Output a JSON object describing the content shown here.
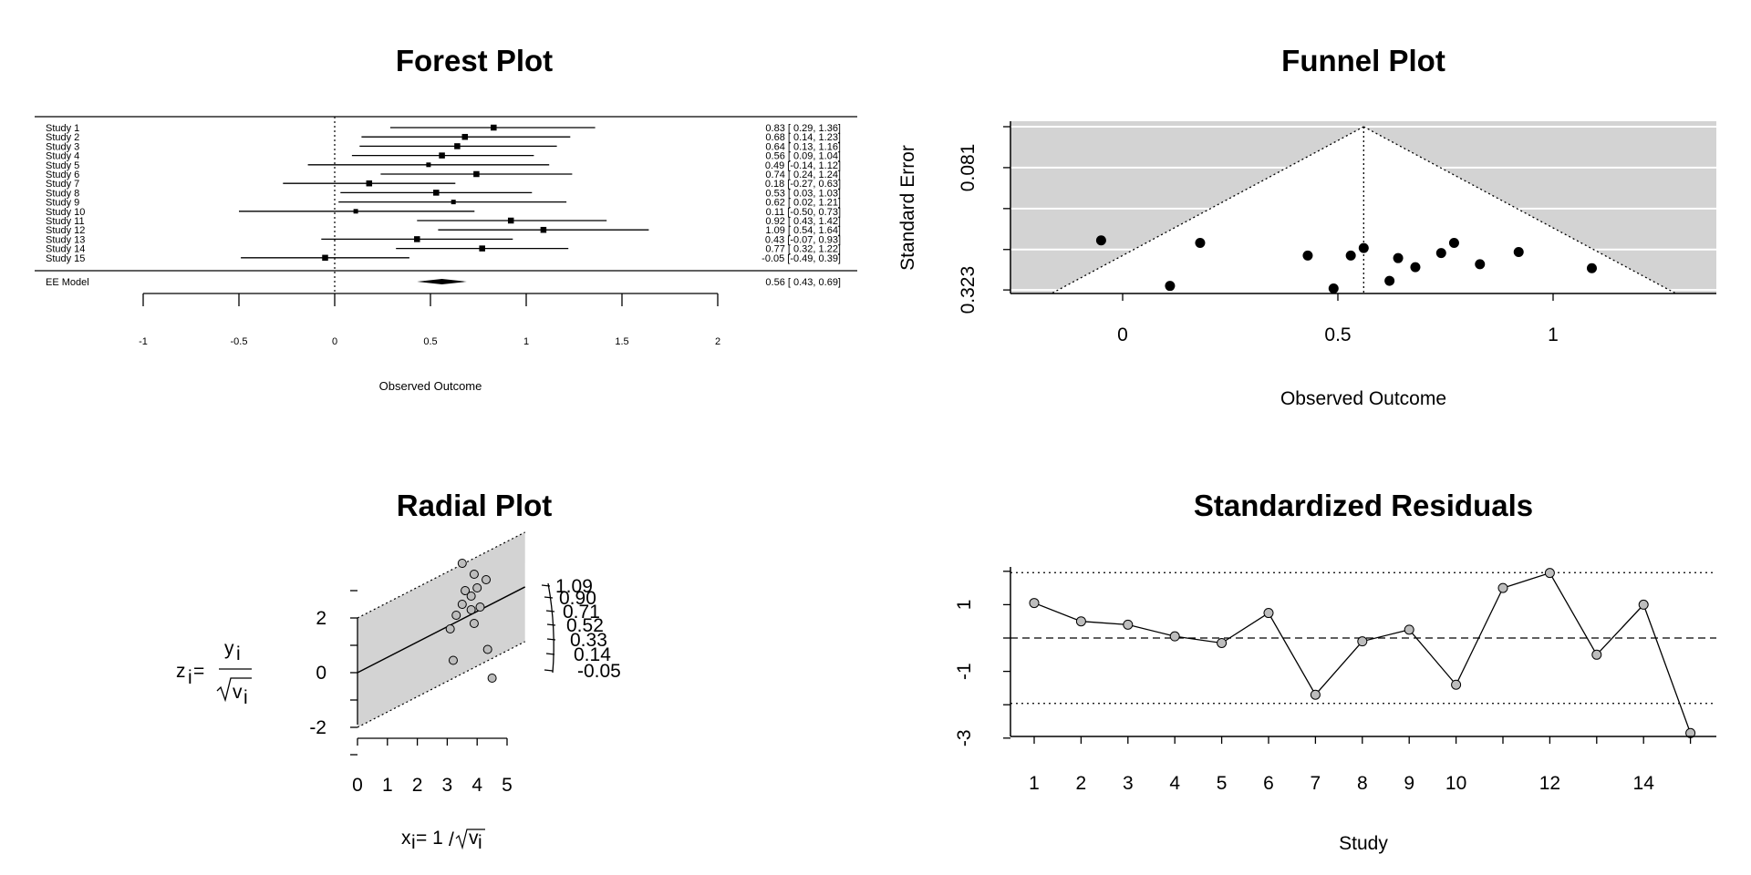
{
  "chart_data": [
    {
      "type": "forest",
      "title": "Forest Plot",
      "xlabel": "Observed Outcome",
      "xticks": [
        "-1",
        "-0.5",
        "0",
        "0.5",
        "1",
        "1.5",
        "2"
      ],
      "studies": [
        {
          "label": "Study 1",
          "est": 0.83,
          "lo": 0.29,
          "hi": 1.36,
          "text": "0.83 [ 0.29, 1.36]"
        },
        {
          "label": "Study 2",
          "est": 0.68,
          "lo": 0.14,
          "hi": 1.23,
          "text": "0.68 [ 0.14, 1.23]"
        },
        {
          "label": "Study 3",
          "est": 0.64,
          "lo": 0.13,
          "hi": 1.16,
          "text": "0.64 [ 0.13, 1.16]"
        },
        {
          "label": "Study 4",
          "est": 0.56,
          "lo": 0.09,
          "hi": 1.04,
          "text": "0.56 [ 0.09, 1.04]"
        },
        {
          "label": "Study 5",
          "est": 0.49,
          "lo": -0.14,
          "hi": 1.12,
          "text": "0.49 [-0.14, 1.12]"
        },
        {
          "label": "Study 6",
          "est": 0.74,
          "lo": 0.24,
          "hi": 1.24,
          "text": "0.74 [ 0.24, 1.24]"
        },
        {
          "label": "Study 7",
          "est": 0.18,
          "lo": -0.27,
          "hi": 0.63,
          "text": "0.18 [-0.27, 0.63]"
        },
        {
          "label": "Study 8",
          "est": 0.53,
          "lo": 0.03,
          "hi": 1.03,
          "text": "0.53 [ 0.03, 1.03]"
        },
        {
          "label": "Study 9",
          "est": 0.62,
          "lo": 0.02,
          "hi": 1.21,
          "text": "0.62 [ 0.02, 1.21]"
        },
        {
          "label": "Study 10",
          "est": 0.11,
          "lo": -0.5,
          "hi": 0.73,
          "text": "0.11 [-0.50, 0.73]"
        },
        {
          "label": "Study 11",
          "est": 0.92,
          "lo": 0.43,
          "hi": 1.42,
          "text": "0.92 [ 0.43, 1.42]"
        },
        {
          "label": "Study 12",
          "est": 1.09,
          "lo": 0.54,
          "hi": 1.64,
          "text": "1.09 [ 0.54, 1.64]"
        },
        {
          "label": "Study 13",
          "est": 0.43,
          "lo": -0.07,
          "hi": 0.93,
          "text": "0.43 [-0.07, 0.93]"
        },
        {
          "label": "Study 14",
          "est": 0.77,
          "lo": 0.32,
          "hi": 1.22,
          "text": "0.77 [ 0.32, 1.22]"
        },
        {
          "label": "Study 15",
          "est": -0.05,
          "lo": -0.49,
          "hi": 0.39,
          "text": "-0.05 [-0.49, 0.39]"
        }
      ],
      "summary": {
        "label": "EE Model",
        "est": 0.56,
        "lo": 0.43,
        "hi": 0.69,
        "text": "0.56 [ 0.43, 0.69]"
      }
    },
    {
      "type": "scatter",
      "title": "Funnel Plot",
      "xlabel": "Observed Outcome",
      "ylabel": "Standard Error",
      "xticks": [
        "0",
        "0.5",
        "1"
      ],
      "yticks": [
        "0.081",
        "0.323"
      ],
      "center": 0.56,
      "points": [
        {
          "x": -0.05,
          "y": 0.225
        },
        {
          "x": 0.18,
          "y": 0.23
        },
        {
          "x": 0.11,
          "y": 0.315
        },
        {
          "x": 0.43,
          "y": 0.255
        },
        {
          "x": 0.49,
          "y": 0.32
        },
        {
          "x": 0.53,
          "y": 0.255
        },
        {
          "x": 0.56,
          "y": 0.24
        },
        {
          "x": 0.62,
          "y": 0.305
        },
        {
          "x": 0.64,
          "y": 0.26
        },
        {
          "x": 0.68,
          "y": 0.278
        },
        {
          "x": 0.74,
          "y": 0.25
        },
        {
          "x": 0.77,
          "y": 0.23
        },
        {
          "x": 0.83,
          "y": 0.272
        },
        {
          "x": 0.92,
          "y": 0.248
        },
        {
          "x": 1.09,
          "y": 0.28
        }
      ]
    },
    {
      "type": "scatter",
      "title": "Radial Plot",
      "xlabel_parts": {
        "lhs": "x",
        "sub": "i",
        "eq": " = 1",
        "slash": "/",
        "root_body": "v",
        "root_sub": "i"
      },
      "ylabel_parts": {
        "lhs": "z",
        "sub": "i",
        "eq": " = ",
        "num": "y",
        "num_sub": "i",
        "den": "v",
        "den_sub": "i"
      },
      "xticks": [
        "0",
        "1",
        "2",
        "3",
        "4",
        "5"
      ],
      "yticks": [
        "2",
        "0",
        "-2"
      ],
      "arc_labels": [
        "1.09",
        "0.90",
        "0.71",
        "0.52",
        "0.33",
        "0.14",
        "-0.05"
      ],
      "slope": 0.56,
      "points": [
        {
          "x": 3.5,
          "y": 4.0
        },
        {
          "x": 4.3,
          "y": 3.4
        },
        {
          "x": 3.9,
          "y": 3.6
        },
        {
          "x": 3.6,
          "y": 3.0
        },
        {
          "x": 4.0,
          "y": 3.1
        },
        {
          "x": 3.8,
          "y": 2.8
        },
        {
          "x": 3.5,
          "y": 2.5
        },
        {
          "x": 4.1,
          "y": 2.4
        },
        {
          "x": 3.8,
          "y": 2.3
        },
        {
          "x": 3.3,
          "y": 2.1
        },
        {
          "x": 3.1,
          "y": 1.6
        },
        {
          "x": 3.9,
          "y": 1.8
        },
        {
          "x": 4.35,
          "y": 0.85
        },
        {
          "x": 3.2,
          "y": 0.45
        },
        {
          "x": 4.5,
          "y": -0.2
        }
      ]
    },
    {
      "type": "line",
      "title": "Standardized Residuals",
      "xlabel": "Study",
      "xticks": [
        "1",
        "2",
        "3",
        "4",
        "5",
        "6",
        "7",
        "8",
        "9",
        "10",
        "12",
        "14"
      ],
      "yticks": [
        "1",
        "-1",
        "-3"
      ],
      "x": [
        1,
        2,
        3,
        4,
        5,
        6,
        7,
        8,
        9,
        10,
        11,
        12,
        13,
        14,
        15
      ],
      "values": [
        1.05,
        0.5,
        0.4,
        0.05,
        -0.15,
        0.75,
        -1.7,
        -0.1,
        0.25,
        -1.4,
        1.5,
        1.95,
        -0.5,
        1.0,
        -2.85
      ],
      "ref_lines": [
        0,
        1.96,
        -1.96
      ]
    }
  ]
}
